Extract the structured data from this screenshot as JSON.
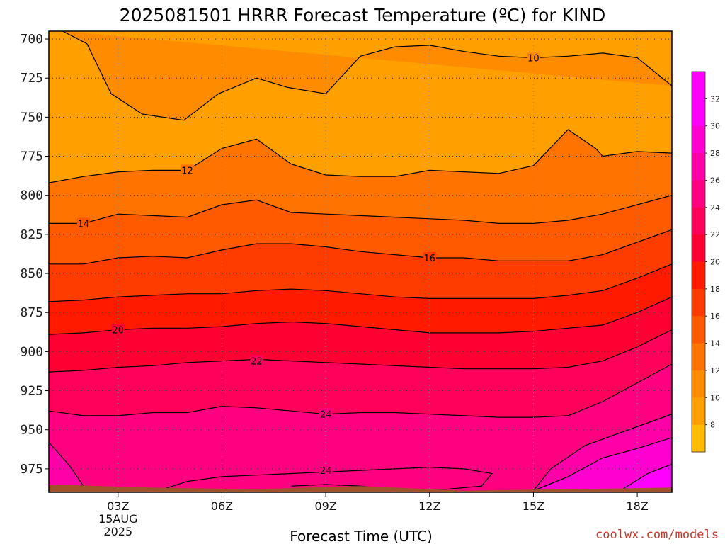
{
  "title": "2025081501 HRRR Forecast Temperature (ºC) for KIND",
  "credit": "coolwx.com/models",
  "chart_data": {
    "type": "heatmap",
    "title": "2025081501 HRRR Forecast Temperature (ºC) for KIND",
    "xlabel": "Forecast Time (UTC)",
    "ylabel": "",
    "x_range_hours": [
      1,
      19
    ],
    "y_range_hpa": [
      695,
      990
    ],
    "y_ticks": [
      700,
      725,
      750,
      775,
      800,
      825,
      850,
      875,
      900,
      925,
      950,
      975
    ],
    "y_tick_labels": [
      "700",
      "725",
      "750",
      "775",
      "800",
      "825",
      "850",
      "875",
      "900",
      "925",
      "950",
      "975"
    ],
    "x_ticks": [
      3,
      6,
      9,
      12,
      15,
      18
    ],
    "x_tick_labels": [
      "03Z",
      "06Z",
      "09Z",
      "12Z",
      "15Z",
      "18Z"
    ],
    "x_date_label": [
      "15AUG",
      "2025"
    ],
    "grid": true,
    "colorbar": {
      "levels": [
        6,
        8,
        10,
        12,
        14,
        16,
        18,
        20,
        22,
        24,
        26,
        28,
        30,
        32,
        34
      ],
      "tick_labels": [
        "8",
        "10",
        "12",
        "14",
        "16",
        "18",
        "20",
        "22",
        "24",
        "26",
        "28",
        "30",
        "32"
      ],
      "colors": [
        "#ffbb00",
        "#ff9f00",
        "#ff8c00",
        "#ff7300",
        "#ff5a00",
        "#ff3c00",
        "#ff1a00",
        "#ff0033",
        "#ff005a",
        "#ff0080",
        "#ff00a8",
        "#ff00d0",
        "#ff00ff",
        "#ff00ff"
      ]
    },
    "contours": [
      {
        "level": 10,
        "label": "10",
        "label_at": [
          15,
          712
        ],
        "points": [
          [
            1.4,
            695
          ],
          [
            2.1,
            703
          ],
          [
            2.8,
            735
          ],
          [
            3.7,
            748
          ],
          [
            4.9,
            752
          ],
          [
            5.9,
            735
          ],
          [
            7.0,
            725
          ],
          [
            7.9,
            731
          ],
          [
            9.0,
            735
          ],
          [
            10.0,
            711
          ],
          [
            11.0,
            705
          ],
          [
            12.0,
            704
          ],
          [
            13.0,
            708
          ],
          [
            14.0,
            711
          ],
          [
            15.0,
            712
          ],
          [
            16.0,
            711
          ],
          [
            17.0,
            709
          ],
          [
            18.0,
            712
          ],
          [
            19.0,
            730
          ]
        ]
      },
      {
        "level": 12,
        "label": "12",
        "label_at": [
          5,
          784
        ],
        "points": [
          [
            1.0,
            792
          ],
          [
            2.0,
            788
          ],
          [
            3.0,
            785
          ],
          [
            4.0,
            784
          ],
          [
            5.0,
            784
          ],
          [
            6.0,
            770
          ],
          [
            7.0,
            764
          ],
          [
            8.0,
            780
          ],
          [
            9.0,
            787
          ],
          [
            10.0,
            788
          ],
          [
            11.0,
            788
          ],
          [
            12.0,
            784
          ],
          [
            13.0,
            785
          ],
          [
            14.0,
            786
          ],
          [
            15.0,
            781
          ],
          [
            16.0,
            758
          ],
          [
            16.8,
            770
          ],
          [
            17.0,
            775
          ],
          [
            18.0,
            772
          ],
          [
            19.0,
            773
          ]
        ]
      },
      {
        "level": 14,
        "label": "14",
        "label_at": [
          2,
          818
        ],
        "points": [
          [
            1.0,
            818
          ],
          [
            2.0,
            818
          ],
          [
            3.0,
            812
          ],
          [
            4.0,
            813
          ],
          [
            5.0,
            814
          ],
          [
            6.0,
            806
          ],
          [
            7.0,
            803
          ],
          [
            8.0,
            811
          ],
          [
            9.0,
            812
          ],
          [
            10.0,
            813
          ],
          [
            11.0,
            814
          ],
          [
            12.0,
            815
          ],
          [
            13.0,
            816
          ],
          [
            14.0,
            818
          ],
          [
            15.0,
            818
          ],
          [
            16.0,
            816
          ],
          [
            17.0,
            812
          ],
          [
            18.0,
            806
          ],
          [
            19.0,
            800
          ]
        ]
      },
      {
        "level": 16,
        "label": "16",
        "label_at": [
          12,
          840
        ],
        "points": [
          [
            1.0,
            844
          ],
          [
            2.0,
            844
          ],
          [
            3.0,
            840
          ],
          [
            4.0,
            839
          ],
          [
            5.0,
            840
          ],
          [
            6.0,
            835
          ],
          [
            7.0,
            831
          ],
          [
            8.0,
            831
          ],
          [
            9.0,
            833
          ],
          [
            10.0,
            836
          ],
          [
            11.0,
            838
          ],
          [
            12.0,
            840
          ],
          [
            13.0,
            840
          ],
          [
            14.0,
            842
          ],
          [
            15.0,
            842
          ],
          [
            16.0,
            842
          ],
          [
            17.0,
            838
          ],
          [
            18.0,
            830
          ],
          [
            19.0,
            822
          ]
        ]
      },
      {
        "level": 18,
        "label": "",
        "label_at": null,
        "points": [
          [
            1.0,
            868
          ],
          [
            2.0,
            867
          ],
          [
            3.0,
            865
          ],
          [
            4.0,
            864
          ],
          [
            5.0,
            863
          ],
          [
            6.0,
            863
          ],
          [
            7.0,
            861
          ],
          [
            8.0,
            860
          ],
          [
            9.0,
            861
          ],
          [
            10.0,
            863
          ],
          [
            11.0,
            865
          ],
          [
            12.0,
            866
          ],
          [
            13.0,
            866
          ],
          [
            14.0,
            866
          ],
          [
            15.0,
            866
          ],
          [
            16.0,
            864
          ],
          [
            17.0,
            861
          ],
          [
            18.0,
            853
          ],
          [
            19.0,
            844
          ]
        ]
      },
      {
        "level": 20,
        "label": "20",
        "label_at": [
          3,
          886
        ],
        "points": [
          [
            1.0,
            889
          ],
          [
            2.0,
            888
          ],
          [
            3.0,
            886
          ],
          [
            4.0,
            885
          ],
          [
            5.0,
            885
          ],
          [
            6.0,
            884
          ],
          [
            7.0,
            882
          ],
          [
            8.0,
            881
          ],
          [
            9.0,
            882
          ],
          [
            10.0,
            884
          ],
          [
            11.0,
            886
          ],
          [
            12.0,
            888
          ],
          [
            13.0,
            888
          ],
          [
            14.0,
            888
          ],
          [
            15.0,
            887
          ],
          [
            16.0,
            885
          ],
          [
            17.0,
            883
          ],
          [
            18.0,
            875
          ],
          [
            19.0,
            865
          ]
        ]
      },
      {
        "level": 22,
        "label": "22",
        "label_at": [
          7,
          906
        ],
        "points": [
          [
            1.0,
            913
          ],
          [
            2.0,
            912
          ],
          [
            3.0,
            910
          ],
          [
            4.0,
            909
          ],
          [
            5.0,
            907
          ],
          [
            6.0,
            906
          ],
          [
            7.0,
            905
          ],
          [
            8.0,
            906
          ],
          [
            9.0,
            907
          ],
          [
            10.0,
            908
          ],
          [
            11.0,
            909
          ],
          [
            12.0,
            910
          ],
          [
            13.0,
            911
          ],
          [
            14.0,
            911
          ],
          [
            15.0,
            911
          ],
          [
            16.0,
            910
          ],
          [
            17.0,
            906
          ],
          [
            18.0,
            897
          ],
          [
            19.0,
            886
          ]
        ]
      },
      {
        "level": 24,
        "label": "24",
        "label_at": [
          9,
          940
        ],
        "points": [
          [
            1.0,
            938
          ],
          [
            2.0,
            941
          ],
          [
            3.0,
            941
          ],
          [
            4.0,
            939
          ],
          [
            5.0,
            939
          ],
          [
            6.0,
            935
          ],
          [
            7.0,
            936
          ],
          [
            8.0,
            938
          ],
          [
            9.0,
            940
          ],
          [
            10.0,
            939
          ],
          [
            11.0,
            939
          ],
          [
            12.0,
            940
          ],
          [
            13.0,
            941
          ],
          [
            14.0,
            942
          ],
          [
            15.0,
            942
          ],
          [
            16.0,
            941
          ],
          [
            17.0,
            932
          ],
          [
            18.0,
            920
          ],
          [
            19.0,
            908
          ]
        ]
      },
      {
        "level": 24,
        "label": "24",
        "label_at": [
          9,
          976
        ],
        "points": [
          [
            4.3,
            988
          ],
          [
            5.0,
            983
          ],
          [
            6.0,
            980
          ],
          [
            7.0,
            979
          ],
          [
            8.0,
            978
          ],
          [
            9.0,
            977
          ],
          [
            10.0,
            976
          ],
          [
            11.0,
            975
          ],
          [
            12.0,
            974
          ],
          [
            13.0,
            975
          ],
          [
            13.8,
            978
          ],
          [
            13.5,
            986
          ],
          [
            12.5,
            988
          ],
          [
            11.0,
            988
          ],
          [
            10.0,
            986
          ],
          [
            9.0,
            985
          ],
          [
            8.0,
            986
          ]
        ]
      },
      {
        "level": 26,
        "label": "",
        "label_at": null,
        "points": [
          [
            15.0,
            989
          ],
          [
            15.5,
            975
          ],
          [
            16.5,
            960
          ],
          [
            17.5,
            952
          ],
          [
            18.5,
            944
          ],
          [
            19.0,
            940
          ]
        ]
      },
      {
        "level": 26,
        "label": "",
        "label_at": null,
        "points": [
          [
            1.0,
            958
          ],
          [
            1.6,
            973
          ],
          [
            2.0,
            986
          ]
        ]
      },
      {
        "level": 28,
        "label": "",
        "label_at": null,
        "points": [
          [
            15.0,
            989
          ],
          [
            16.0,
            980
          ],
          [
            17.0,
            968
          ],
          [
            18.0,
            962
          ],
          [
            19.0,
            955
          ]
        ]
      },
      {
        "level": 30,
        "label": "",
        "label_at": null,
        "points": [
          [
            17.5,
            989
          ],
          [
            18.3,
            978
          ],
          [
            19.0,
            972
          ]
        ]
      }
    ],
    "fills": [
      {
        "color": "#ff9f00",
        "level": 8,
        "points": [
          [
            1.4,
            695
          ],
          [
            2.1,
            703
          ],
          [
            2.8,
            735
          ],
          [
            3.7,
            748
          ],
          [
            4.9,
            752
          ],
          [
            5.9,
            735
          ],
          [
            7.0,
            725
          ],
          [
            7.9,
            731
          ],
          [
            9.0,
            735
          ],
          [
            10.0,
            711
          ],
          [
            11.0,
            705
          ],
          [
            12.0,
            704
          ],
          [
            13.0,
            708
          ],
          [
            14.0,
            711
          ],
          [
            15.0,
            712
          ],
          [
            16.0,
            711
          ],
          [
            17.0,
            709
          ],
          [
            18.0,
            712
          ],
          [
            19.0,
            730
          ],
          [
            19.0,
            695
          ]
        ]
      }
    ],
    "surface_color": "#a0522d",
    "surface_top_hpa": [
      [
        1.0,
        985
      ],
      [
        4.0,
        987
      ],
      [
        7.0,
        988
      ],
      [
        10.0,
        986
      ],
      [
        13.0,
        989
      ],
      [
        16.0,
        988
      ],
      [
        19.0,
        987
      ]
    ]
  }
}
